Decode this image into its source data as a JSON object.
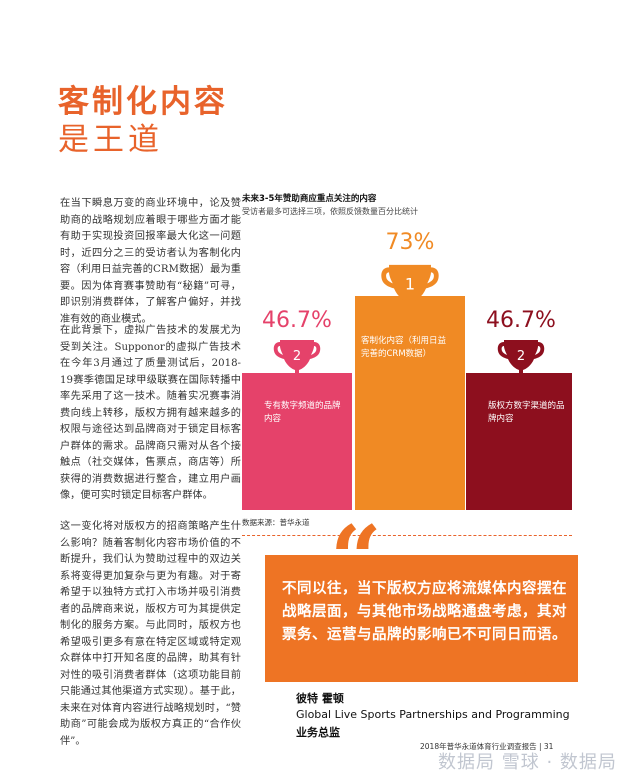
{
  "heading": {
    "line1": "客制化内容",
    "line2": "是王道"
  },
  "body": {
    "para1": "在当下瞬息万变的商业环境中，论及赞助商的战略规划应着眼于哪些方面才能有助于实现投资回报率最大化这一问题时，近四分之三的受访者认为客制化内容（利用日益完善的CRM数据）最为重要。因为体育赛事赞助有“秘籍”可寻，即识别消费群体，了解客户偏好，并找准有效的商业模式。",
    "para2": "在此背景下，虚拟广告技术的发展尤为受到关注。Supponor的虚拟广告技术在今年3月通过了质量测试后，2018-19赛季德国足球甲级联赛在国际转播中率先采用了这一技术。随着实况赛事消费向线上转移，版权方拥有越来越多的权限与途径达到品牌商对于锁定目标客户群体的需求。品牌商只需对从各个接触点（社交媒体，售票点，商店等）所获得的消费数据进行整合，建立用户画像，便可实时锁定目标客户群体。",
    "para3": "这一变化将对版权方的招商策略产生什么影响？随着客制化内容市场价值的不断提升，我们认为赞助过程中的双边关系将变得更加复杂与更为有趣。对于寄希望于以独特方式打入市场并吸引消费者的品牌商来说，版权方可为其提供定制化的服务方案。与此同时，版权方也希望吸引更多有意在特定区域或特定观众群体中打开知名度的品牌，助其有针对性的吸引消费者群体（这项功能目前只能通过其他渠道方式实现）。基于此，未来在对体育内容进行战略规划时，“赞助商”可能会成为版权方真正的“合作伙伴”。"
  },
  "chart_data": {
    "type": "bar",
    "title": "未来3-5年赞助商应重点关注的内容",
    "subtitle": "受访者最多可选择三项，依照反馈数量百分比统计",
    "categories": [
      "专有数字频道的品牌内容",
      "客制化内容（利用日益完善的CRM数据）",
      "版权方数字渠道的品牌内容"
    ],
    "values": [
      46.7,
      73,
      46.7
    ],
    "value_labels": [
      "46.7%",
      "73%",
      "46.7%"
    ],
    "ranks": [
      "2",
      "1",
      "2"
    ],
    "colors": [
      "#e5426a",
      "#f08a24",
      "#8d0f1e"
    ],
    "source": "数据来源：普华永道"
  },
  "quote": {
    "text": "不同以往，当下版权方应将流媒体内容摆在战略层面，与其他市场战略通盘考虑，其对票务、运营与品牌的影响已不可同日而语。",
    "open_mark": "“",
    "close_mark": "”"
  },
  "signature": {
    "name": "彼特 霍顿",
    "role_line1": "Global Live Sports Partnerships and Programming",
    "role_line2": "业务总监"
  },
  "footer": {
    "text": "2018年普华永道体育行业调查报告 | 31"
  },
  "watermark": {
    "text": "数据局  雪球 · 数据局"
  }
}
